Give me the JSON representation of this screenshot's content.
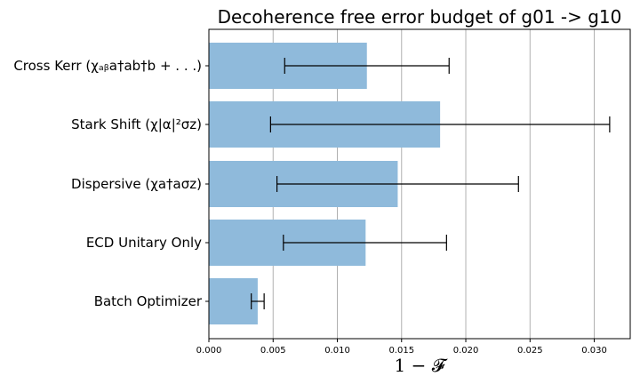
{
  "chart_data": {
    "type": "bar",
    "orientation": "horizontal",
    "title": "Decoherence free error budget of g01 -> g10",
    "xlabel": "1 − 𝓕",
    "ylabel": "",
    "xlim": [
      0,
      0.0328
    ],
    "x_ticks": [
      "0.000",
      "0.005",
      "0.010",
      "0.015",
      "0.020",
      "0.025",
      "0.030"
    ],
    "x_tick_values": [
      0,
      0.005,
      0.01,
      0.015,
      0.02,
      0.025,
      0.03
    ],
    "grid": "x-major",
    "bar_color": "#8fbadb",
    "categories": [
      "Cross Kerr (χₐᵦa†ab†b + . . .)",
      "Stark Shift (χ|α|²σz)",
      "Dispersive (χa†aσz)",
      "ECD Unitary Only",
      "Batch Optimizer"
    ],
    "values": [
      0.0123,
      0.018,
      0.0147,
      0.0122,
      0.0038
    ],
    "error_low": [
      0.0059,
      0.0048,
      0.0053,
      0.0058,
      0.0033
    ],
    "error_high": [
      0.0187,
      0.0312,
      0.0241,
      0.0185,
      0.0043
    ]
  }
}
